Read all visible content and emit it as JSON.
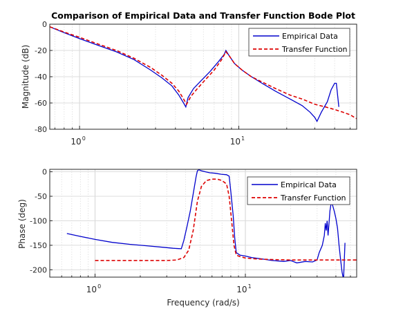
{
  "chart_data": [
    {
      "type": "line",
      "title": "Comparison of Empirical Data and Transfer Function Bode Plot",
      "xlabel": "",
      "ylabel": "Magnitude (dB)",
      "xscale": "log",
      "xlim": [
        0.65,
        55
      ],
      "ylim": [
        -80,
        0
      ],
      "yticks": [
        0,
        -20,
        -40,
        -60,
        -80
      ],
      "xtick_labels": [
        {
          "value": 1,
          "base": "10",
          "exp": "0"
        },
        {
          "value": 10,
          "base": "10",
          "exp": "1"
        }
      ],
      "grid": true,
      "legend": "top-right",
      "series": [
        {
          "name": "Empirical Data",
          "color": "#0000cc",
          "style": "solid",
          "x": [
            0.65,
            0.8,
            1.0,
            1.3,
            1.7,
            2.2,
            2.8,
            3.3,
            3.8,
            4.2,
            4.5,
            4.65,
            4.8,
            5.2,
            5.8,
            6.6,
            7.4,
            8.1,
            8.3,
            8.7,
            9.4,
            10.5,
            12,
            14,
            17,
            21,
            25,
            28,
            30,
            31,
            33,
            36,
            38,
            40,
            41,
            42.5
          ],
          "y": [
            -2,
            -6.5,
            -11,
            -16,
            -21,
            -27,
            -35,
            -41,
            -47,
            -54,
            -60,
            -63,
            -56,
            -49,
            -43,
            -36,
            -29,
            -23,
            -20,
            -24,
            -30,
            -35,
            -40,
            -45,
            -51,
            -57,
            -62,
            -67,
            -71,
            -74,
            -67,
            -59,
            -50,
            -45,
            -45,
            -63
          ]
        },
        {
          "name": "Transfer Function",
          "color": "#dd0000",
          "style": "dashed",
          "x": [
            0.65,
            0.8,
            1.0,
            1.3,
            1.7,
            2.2,
            2.8,
            3.3,
            3.8,
            4.2,
            4.5,
            4.7,
            5.0,
            5.5,
            6.2,
            7.0,
            7.8,
            8.3,
            8.7,
            9.4,
            10.5,
            12,
            14,
            17,
            21,
            25,
            30,
            35,
            40,
            45,
            50,
            55
          ],
          "y": [
            -2,
            -6,
            -10,
            -15,
            -20,
            -26,
            -33,
            -39,
            -45,
            -51,
            -57,
            -61,
            -55,
            -49,
            -42,
            -35,
            -27,
            -21,
            -24,
            -30,
            -35,
            -40,
            -44,
            -49,
            -54,
            -57,
            -61,
            -63,
            -65,
            -67,
            -69,
            -72
          ]
        }
      ]
    },
    {
      "type": "line",
      "title": "",
      "xlabel": "Frequency (rad/s)",
      "ylabel": "Phase (deg)",
      "xscale": "log",
      "xlim": [
        0.5,
        55
      ],
      "ylim": [
        -215,
        5
      ],
      "yticks": [
        0,
        -50,
        -100,
        -150,
        -200
      ],
      "xtick_labels": [
        {
          "value": 1,
          "base": "10",
          "exp": "0"
        },
        {
          "value": 10,
          "base": "10",
          "exp": "1"
        }
      ],
      "grid": true,
      "legend": "top-right",
      "series": [
        {
          "name": "Empirical Data",
          "color": "#0000cc",
          "style": "solid",
          "x": [
            0.65,
            0.8,
            1.0,
            1.3,
            1.7,
            2.2,
            2.8,
            3.3,
            3.75,
            3.9,
            4.1,
            4.3,
            4.5,
            4.7,
            4.8,
            4.9,
            5.1,
            5.4,
            5.8,
            6.3,
            6.9,
            7.5,
            7.8,
            8.0,
            8.3,
            8.5,
            8.7,
            9.2,
            10,
            11,
            13,
            15,
            18,
            20,
            22,
            25,
            28,
            30,
            31,
            32.5,
            33.5,
            34,
            34.5,
            35,
            35.5,
            36,
            36.5,
            37,
            37.5,
            38,
            39,
            40,
            41,
            42,
            43,
            44,
            45,
            46
          ],
          "y": [
            -126,
            -132,
            -138,
            -144,
            -148,
            -151,
            -154,
            -156,
            -157,
            -140,
            -110,
            -80,
            -45,
            -10,
            2,
            4,
            2,
            0,
            -2,
            -3,
            -5,
            -6,
            -9,
            -40,
            -90,
            -135,
            -165,
            -170,
            -172,
            -175,
            -178,
            -181,
            -183,
            -181,
            -186,
            -183,
            -184,
            -180,
            -165,
            -150,
            -130,
            -105,
            -120,
            -100,
            -130,
            -105,
            -80,
            -68,
            -63,
            -68,
            -80,
            -95,
            -115,
            -150,
            -180,
            -205,
            -220,
            -145
          ]
        },
        {
          "name": "Transfer Function",
          "color": "#dd0000",
          "style": "dashed",
          "x": [
            1.0,
            1.5,
            2.0,
            2.5,
            3.0,
            3.5,
            3.9,
            4.2,
            4.5,
            4.8,
            5.1,
            5.5,
            6.0,
            6.5,
            7.0,
            7.5,
            7.8,
            8.1,
            8.4,
            8.7,
            9.2,
            10,
            12,
            15,
            20,
            25,
            30,
            35,
            40,
            45,
            50,
            55
          ],
          "y": [
            -181,
            -181,
            -181,
            -181,
            -181,
            -180,
            -175,
            -160,
            -120,
            -60,
            -30,
            -18,
            -15,
            -15,
            -18,
            -25,
            -50,
            -100,
            -150,
            -170,
            -173,
            -176,
            -178,
            -179,
            -180,
            -180,
            -180,
            -180,
            -180,
            -180,
            -180,
            -180
          ]
        }
      ]
    }
  ]
}
